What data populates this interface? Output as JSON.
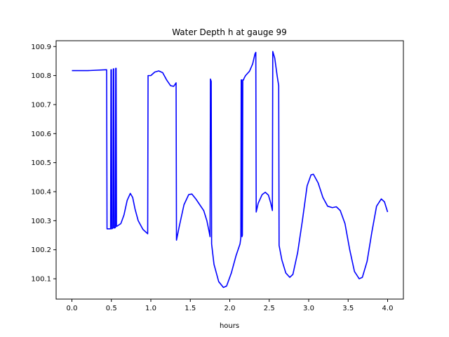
{
  "chart_data": {
    "type": "line",
    "title": "Water Depth h at gauge 99",
    "xlabel": "hours",
    "ylabel": "",
    "xlim": [
      -0.2,
      4.2
    ],
    "ylim": [
      100.03,
      100.92
    ],
    "grid": false,
    "legend": "none",
    "x_ticks": [
      {
        "value": 0.0,
        "label": "0.0"
      },
      {
        "value": 0.5,
        "label": "0.5"
      },
      {
        "value": 1.0,
        "label": "1.0"
      },
      {
        "value": 1.5,
        "label": "1.5"
      },
      {
        "value": 2.0,
        "label": "2.0"
      },
      {
        "value": 2.5,
        "label": "2.5"
      },
      {
        "value": 3.0,
        "label": "3.0"
      },
      {
        "value": 3.5,
        "label": "3.5"
      },
      {
        "value": 4.0,
        "label": "4.0"
      }
    ],
    "y_ticks": [
      {
        "value": 100.1,
        "label": "100.1"
      },
      {
        "value": 100.2,
        "label": "100.2"
      },
      {
        "value": 100.3,
        "label": "100.3"
      },
      {
        "value": 100.4,
        "label": "100.4"
      },
      {
        "value": 100.5,
        "label": "100.5"
      },
      {
        "value": 100.6,
        "label": "100.6"
      },
      {
        "value": 100.7,
        "label": "100.7"
      },
      {
        "value": 100.8,
        "label": "100.8"
      },
      {
        "value": 100.9,
        "label": "100.9"
      }
    ],
    "series": [
      {
        "color": "#0000ff",
        "points": [
          [
            0.0,
            100.817
          ],
          [
            0.2,
            100.817
          ],
          [
            0.44,
            100.82
          ],
          [
            0.445,
            100.272
          ],
          [
            0.49,
            100.272
          ],
          [
            0.495,
            100.82
          ],
          [
            0.5,
            100.82
          ],
          [
            0.505,
            100.272
          ],
          [
            0.52,
            100.275
          ],
          [
            0.525,
            100.823
          ],
          [
            0.53,
            100.823
          ],
          [
            0.535,
            100.275
          ],
          [
            0.55,
            100.276
          ],
          [
            0.555,
            100.825
          ],
          [
            0.56,
            100.825
          ],
          [
            0.565,
            100.28
          ],
          [
            0.62,
            100.29
          ],
          [
            0.66,
            100.32
          ],
          [
            0.7,
            100.37
          ],
          [
            0.74,
            100.394
          ],
          [
            0.77,
            100.38
          ],
          [
            0.8,
            100.34
          ],
          [
            0.84,
            100.3
          ],
          [
            0.9,
            100.27
          ],
          [
            0.96,
            100.255
          ],
          [
            0.965,
            100.8
          ],
          [
            1.0,
            100.8
          ],
          [
            1.05,
            100.812
          ],
          [
            1.1,
            100.816
          ],
          [
            1.15,
            100.81
          ],
          [
            1.2,
            100.785
          ],
          [
            1.25,
            100.765
          ],
          [
            1.29,
            100.763
          ],
          [
            1.32,
            100.775
          ],
          [
            1.325,
            100.233
          ],
          [
            1.36,
            100.28
          ],
          [
            1.42,
            100.355
          ],
          [
            1.48,
            100.39
          ],
          [
            1.52,
            100.392
          ],
          [
            1.57,
            100.375
          ],
          [
            1.62,
            100.355
          ],
          [
            1.67,
            100.335
          ],
          [
            1.71,
            100.3
          ],
          [
            1.74,
            100.26
          ],
          [
            1.75,
            100.245
          ],
          [
            1.755,
            100.788
          ],
          [
            1.765,
            100.78
          ],
          [
            1.77,
            100.22
          ],
          [
            1.8,
            100.15
          ],
          [
            1.86,
            100.09
          ],
          [
            1.92,
            100.07
          ],
          [
            1.96,
            100.075
          ],
          [
            2.02,
            100.12
          ],
          [
            2.08,
            100.18
          ],
          [
            2.13,
            100.22
          ],
          [
            2.14,
            100.24
          ],
          [
            2.145,
            100.785
          ],
          [
            2.15,
            100.785
          ],
          [
            2.155,
            100.245
          ],
          [
            2.16,
            100.25
          ],
          [
            2.165,
            100.785
          ],
          [
            2.175,
            100.785
          ],
          [
            2.18,
            100.79
          ],
          [
            2.2,
            100.8
          ],
          [
            2.25,
            100.815
          ],
          [
            2.29,
            100.84
          ],
          [
            2.32,
            100.875
          ],
          [
            2.33,
            100.88
          ],
          [
            2.335,
            100.33
          ],
          [
            2.36,
            100.36
          ],
          [
            2.41,
            100.39
          ],
          [
            2.45,
            100.398
          ],
          [
            2.49,
            100.388
          ],
          [
            2.52,
            100.36
          ],
          [
            2.54,
            100.335
          ],
          [
            2.545,
            100.883
          ],
          [
            2.57,
            100.86
          ],
          [
            2.6,
            100.8
          ],
          [
            2.62,
            100.765
          ],
          [
            2.625,
            100.215
          ],
          [
            2.66,
            100.165
          ],
          [
            2.71,
            100.12
          ],
          [
            2.76,
            100.105
          ],
          [
            2.8,
            100.115
          ],
          [
            2.86,
            100.19
          ],
          [
            2.92,
            100.3
          ],
          [
            2.98,
            100.42
          ],
          [
            3.03,
            100.458
          ],
          [
            3.06,
            100.46
          ],
          [
            3.12,
            100.43
          ],
          [
            3.18,
            100.38
          ],
          [
            3.24,
            100.35
          ],
          [
            3.3,
            100.345
          ],
          [
            3.35,
            100.348
          ],
          [
            3.4,
            100.335
          ],
          [
            3.46,
            100.29
          ],
          [
            3.52,
            100.2
          ],
          [
            3.58,
            100.125
          ],
          [
            3.64,
            100.1
          ],
          [
            3.68,
            100.105
          ],
          [
            3.74,
            100.16
          ],
          [
            3.8,
            100.26
          ],
          [
            3.86,
            100.35
          ],
          [
            3.92,
            100.375
          ],
          [
            3.96,
            100.365
          ],
          [
            4.0,
            100.33
          ]
        ]
      }
    ]
  }
}
